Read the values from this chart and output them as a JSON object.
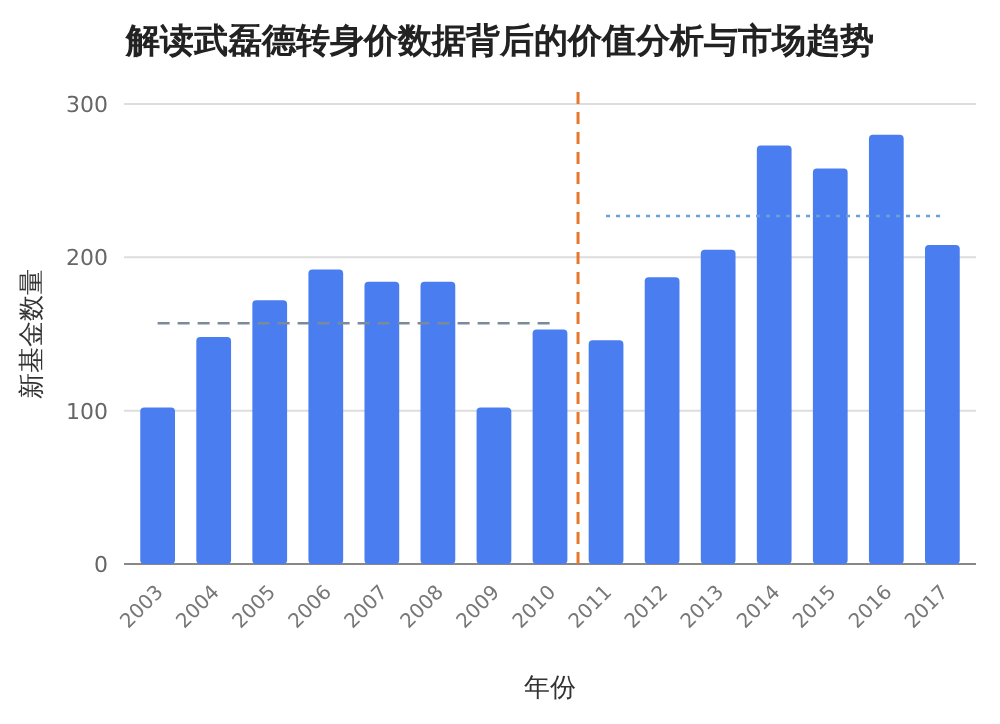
{
  "chart_data": {
    "type": "bar",
    "title": "解读武磊德转身价数据背后的价值分析与市场趋势",
    "xlabel": "年份",
    "ylabel": "新基金数量",
    "x": [
      2003,
      2004,
      2005,
      2006,
      2007,
      2008,
      2009,
      2010,
      2011,
      2012,
      2013,
      2014,
      2015,
      2016,
      2017
    ],
    "xlim": [
      2002.4,
      2017.6
    ],
    "xticks": [
      2003,
      2004,
      2005,
      2006,
      2007,
      2008,
      2009,
      2010,
      2011,
      2012,
      2013,
      2014,
      2015,
      2016,
      2017
    ],
    "ylim": [
      0,
      300
    ],
    "yticks": [
      0,
      100,
      200,
      300
    ],
    "grid": "y",
    "series": [
      {
        "color": "#4a7ef0",
        "values": [
          102,
          148,
          172,
          192,
          184,
          184,
          102,
          153,
          146,
          187,
          205,
          273,
          258,
          280,
          208
        ]
      },
      {
        "type": "line",
        "color": "#7a8a9a",
        "line_style": "dashed",
        "x": [
          2003,
          2010
        ],
        "values": [
          157,
          157
        ]
      },
      {
        "type": "line",
        "color": "#6a9fd8",
        "line_style": "dotted",
        "x": [
          2011,
          2017
        ],
        "values": [
          227,
          227
        ]
      }
    ],
    "ref_lines": [
      {
        "axis": "x",
        "value": 2010.5,
        "label": null,
        "color": "#e8772e",
        "line_style": "dashed"
      }
    ]
  }
}
